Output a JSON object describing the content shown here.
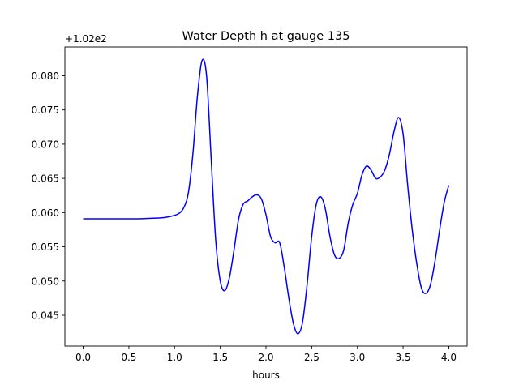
{
  "chart_data": {
    "type": "line",
    "title": "Water Depth h at gauge 135",
    "xlabel": "hours",
    "ylabel": "",
    "y_offset_label": "+1.02e2",
    "xlim": [
      -0.2,
      4.2
    ],
    "ylim": [
      0.0405,
      0.0842
    ],
    "grid": false,
    "x_ticks": [
      0.0,
      0.5,
      1.0,
      1.5,
      2.0,
      2.5,
      3.0,
      3.5,
      4.0
    ],
    "x_tick_labels": [
      "0.0",
      "0.5",
      "1.0",
      "1.5",
      "2.0",
      "2.5",
      "3.0",
      "3.5",
      "4.0"
    ],
    "y_ticks": [
      0.045,
      0.05,
      0.055,
      0.06,
      0.065,
      0.07,
      0.075,
      0.08
    ],
    "y_tick_labels": [
      "0.045",
      "0.050",
      "0.055",
      "0.060",
      "0.065",
      "0.070",
      "0.075",
      "0.080"
    ],
    "series": [
      {
        "color": "#0000ff",
        "x": [
          0.0,
          0.2,
          0.4,
          0.6,
          0.8,
          0.9,
          1.0,
          1.05,
          1.1,
          1.15,
          1.2,
          1.25,
          1.3,
          1.35,
          1.4,
          1.45,
          1.5,
          1.55,
          1.6,
          1.65,
          1.7,
          1.75,
          1.8,
          1.85,
          1.9,
          1.95,
          2.0,
          2.05,
          2.1,
          2.15,
          2.2,
          2.25,
          2.3,
          2.35,
          2.4,
          2.45,
          2.5,
          2.55,
          2.6,
          2.65,
          2.7,
          2.75,
          2.8,
          2.85,
          2.9,
          2.95,
          3.0,
          3.05,
          3.1,
          3.15,
          3.2,
          3.25,
          3.3,
          3.35,
          3.4,
          3.45,
          3.5,
          3.55,
          3.6,
          3.65,
          3.7,
          3.75,
          3.8,
          3.85,
          3.9,
          3.95,
          4.0
        ],
        "y": [
          0.0591,
          0.0591,
          0.0591,
          0.0591,
          0.0592,
          0.0593,
          0.0596,
          0.0599,
          0.0607,
          0.0628,
          0.0685,
          0.077,
          0.0822,
          0.08,
          0.068,
          0.056,
          0.05,
          0.0486,
          0.0505,
          0.0545,
          0.059,
          0.0612,
          0.0617,
          0.0623,
          0.0626,
          0.062,
          0.0597,
          0.0565,
          0.0556,
          0.0556,
          0.052,
          0.0475,
          0.0438,
          0.0423,
          0.044,
          0.0495,
          0.0565,
          0.0612,
          0.0623,
          0.0605,
          0.0565,
          0.0538,
          0.0533,
          0.0545,
          0.0585,
          0.0612,
          0.0628,
          0.0655,
          0.0668,
          0.0662,
          0.065,
          0.0652,
          0.0662,
          0.0685,
          0.0718,
          0.0739,
          0.0715,
          0.064,
          0.0575,
          0.0525,
          0.049,
          0.0482,
          0.0495,
          0.053,
          0.0575,
          0.0615,
          0.064
        ]
      }
    ]
  }
}
